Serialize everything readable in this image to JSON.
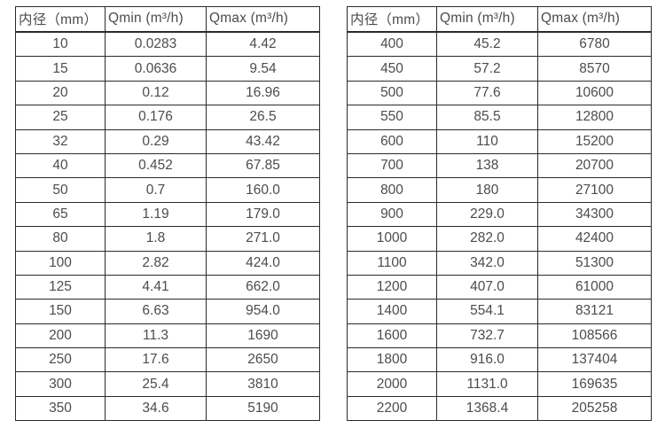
{
  "page": {
    "background_color": "#ffffff",
    "text_color": "#4c4c4c",
    "border_color": "#2b2b2b"
  },
  "tables": [
    {
      "name": "flow-table-small-diameters",
      "headers": [
        "内径（mm）",
        "Qmin (m³/h)",
        "Qmax (m³/h)"
      ],
      "rows": [
        [
          "10",
          "0.0283",
          "4.42"
        ],
        [
          "15",
          "0.0636",
          "9.54"
        ],
        [
          "20",
          "0.12",
          "16.96"
        ],
        [
          "25",
          "0.176",
          "26.5"
        ],
        [
          "32",
          "0.29",
          "43.42"
        ],
        [
          "40",
          "0.452",
          "67.85"
        ],
        [
          "50",
          "0.7",
          "160.0"
        ],
        [
          "65",
          "1.19",
          "179.0"
        ],
        [
          "80",
          "1.8",
          "271.0"
        ],
        [
          "100",
          "2.82",
          "424.0"
        ],
        [
          "125",
          "4.41",
          "662.0"
        ],
        [
          "150",
          "6.63",
          "954.0"
        ],
        [
          "200",
          "11.3",
          "1690"
        ],
        [
          "250",
          "17.6",
          "2650"
        ],
        [
          "300",
          "25.4",
          "3810"
        ],
        [
          "350",
          "34.6",
          "5190"
        ]
      ]
    },
    {
      "name": "flow-table-large-diameters",
      "headers": [
        "内径（mm）",
        "Qmin (m³/h)",
        "Qmax (m³/h)"
      ],
      "rows": [
        [
          "400",
          "45.2",
          "6780"
        ],
        [
          "450",
          "57.2",
          "8570"
        ],
        [
          "500",
          "77.6",
          "10600"
        ],
        [
          "550",
          "85.5",
          "12800"
        ],
        [
          "600",
          "110",
          "15200"
        ],
        [
          "700",
          "138",
          "20700"
        ],
        [
          "800",
          "180",
          "27100"
        ],
        [
          "900",
          "229.0",
          "34300"
        ],
        [
          "1000",
          "282.0",
          "42400"
        ],
        [
          "1100",
          "342.0",
          "51300"
        ],
        [
          "1200",
          "407.0",
          "61000"
        ],
        [
          "1400",
          "554.1",
          "83121"
        ],
        [
          "1600",
          "732.7",
          "108566"
        ],
        [
          "1800",
          "916.0",
          "137404"
        ],
        [
          "2000",
          "1131.0",
          "169635"
        ],
        [
          "2200",
          "1368.4",
          "205258"
        ]
      ]
    }
  ]
}
